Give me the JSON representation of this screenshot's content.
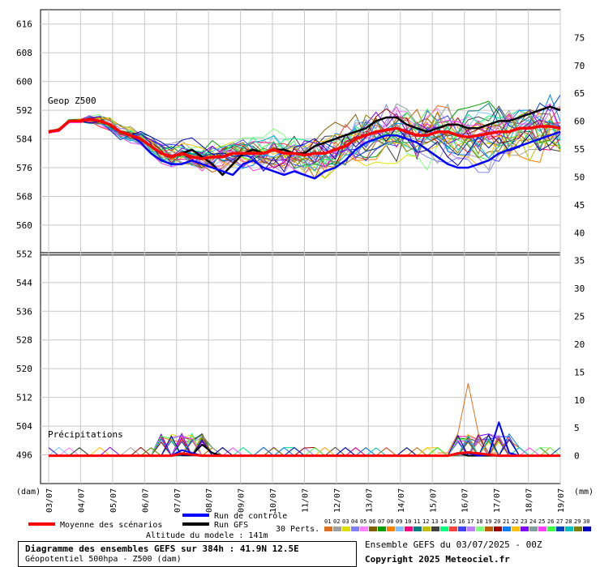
{
  "chart_data": {
    "type": "line",
    "title": "Diagramme des ensembles GEFS sur 384h : 41.9N 12.5E",
    "subtitle": "Géopotentiel 500hpa - Z500 (dam)",
    "ylabel_left": "(dam)",
    "ylabel_right": "(mm)",
    "ylim_left": [
      488,
      620
    ],
    "yticks_left": [
      616,
      608,
      600,
      592,
      584,
      576,
      568,
      560,
      552,
      544,
      536,
      528,
      520,
      512,
      504,
      496
    ],
    "ylim_right": [
      -5,
      80
    ],
    "yticks_right": [
      75,
      70,
      65,
      60,
      55,
      50,
      45,
      40,
      35,
      30,
      25,
      20,
      15,
      10,
      5,
      0
    ],
    "x_ticks": [
      "03/07",
      "04/07",
      "05/07",
      "06/07",
      "07/07",
      "08/07",
      "09/07",
      "10/07",
      "11/07",
      "12/07",
      "13/07",
      "14/07",
      "15/07",
      "16/07",
      "17/07",
      "18/07",
      "19/07"
    ],
    "grid": true,
    "label_geop": "Geop Z500",
    "label_precip": "Précipitations",
    "separator_line_value": 552,
    "series": [
      {
        "name": "Moyenne des scénarios",
        "color": "#ff0000",
        "values": [
          586,
          586.5,
          589,
          589,
          589.5,
          589,
          588,
          586,
          585,
          584,
          582,
          580,
          579,
          580,
          579,
          578.5,
          579,
          579,
          580,
          580,
          580,
          580,
          581,
          580,
          580,
          579.5,
          580,
          580,
          581,
          582,
          584,
          585,
          586,
          586.5,
          587,
          586,
          585,
          585,
          586,
          586,
          585,
          584.5,
          585,
          585.5,
          586,
          586,
          587,
          587,
          587.5,
          587.5,
          587
        ]
      },
      {
        "name": "Run de contrôle",
        "color": "#0000ff",
        "values": [
          586,
          586.5,
          589,
          589,
          589.5,
          589,
          588,
          586,
          585,
          583,
          580,
          578,
          577,
          577,
          578,
          577,
          576,
          575,
          574,
          577,
          578,
          576,
          575,
          574,
          575,
          574,
          573,
          575,
          576,
          578,
          581,
          583,
          584,
          585,
          585,
          584,
          583,
          581,
          579,
          577,
          576,
          576,
          577,
          578,
          580,
          581,
          582,
          583,
          584,
          585,
          586
        ]
      },
      {
        "name": "Run GFS",
        "color": "#000000",
        "values": [
          586,
          586.5,
          589,
          589,
          589.5,
          589,
          588,
          586,
          585,
          584,
          582,
          580,
          579,
          580,
          581,
          579,
          577,
          574,
          577,
          580,
          581,
          580,
          581,
          581,
          580,
          580,
          582,
          583,
          584,
          585,
          586,
          587,
          589,
          590,
          590,
          588,
          587,
          586,
          587,
          588,
          588,
          587,
          587,
          588,
          589,
          589,
          590,
          591,
          592,
          593,
          592
        ]
      }
    ],
    "precip": {
      "mean": [
        0,
        0,
        0,
        0,
        0,
        0,
        0,
        0,
        0,
        0,
        0,
        0,
        0,
        0.4,
        0.2,
        0,
        0,
        0,
        0,
        0,
        0,
        0,
        0,
        0,
        0,
        0,
        0,
        0,
        0,
        0,
        0,
        0,
        0,
        0,
        0,
        0,
        0,
        0,
        0,
        0,
        0.4,
        0.6,
        0.4,
        0.2,
        0,
        0,
        0,
        0,
        0,
        0,
        0
      ],
      "control": [
        0,
        0,
        0,
        0,
        0,
        0,
        0,
        0,
        0,
        0,
        0,
        0,
        0,
        1,
        0.5,
        0,
        0,
        0,
        0,
        0,
        0,
        0,
        0,
        0,
        0,
        0,
        0,
        0,
        0,
        0,
        0,
        0,
        0,
        0,
        0,
        0,
        0,
        0,
        0,
        0,
        0.3,
        0.5,
        0,
        0.2,
        6,
        0.5,
        0,
        0,
        0,
        0,
        0
      ],
      "gfs": [
        0,
        0,
        0,
        0,
        0,
        0,
        0,
        0,
        0,
        0,
        0,
        0,
        0,
        0.2,
        0.1,
        2,
        0.5,
        0,
        0,
        0,
        0,
        0,
        0,
        0,
        0,
        0,
        0,
        0,
        0,
        0,
        0,
        0,
        0,
        0,
        0,
        0,
        0,
        0,
        0,
        0,
        0.5,
        0,
        0,
        0,
        0,
        0,
        0,
        0,
        0,
        0,
        0
      ],
      "peak_member_max": 13
    }
  },
  "legend": {
    "mean_label": "Moyenne des scénarios",
    "control_label": "Run de contrôle",
    "gfs_label": "Run GFS",
    "perts_label": "30 Perts.",
    "altitude_label": "Altitude du modele : 141m",
    "member_numbers": [
      "01",
      "02",
      "03",
      "04",
      "05",
      "06",
      "07",
      "08",
      "09",
      "10",
      "11",
      "12",
      "13",
      "14",
      "15",
      "16",
      "17",
      "18",
      "19",
      "20",
      "21",
      "22",
      "23",
      "24",
      "25",
      "26",
      "27",
      "28",
      "29",
      "30"
    ],
    "member_colors": [
      "#e07020",
      "#a0a0a0",
      "#e0e000",
      "#8080ff",
      "#ff80ff",
      "#806000",
      "#00a000",
      "#ff8000",
      "#80c0ff",
      "#ff0080",
      "#008080",
      "#c0c000",
      "#404040",
      "#00ff80",
      "#ff4040",
      "#4040ff",
      "#c080ff",
      "#80ff80",
      "#c06000",
      "#a00000",
      "#0080ff",
      "#ffc000",
      "#8000ff",
      "#80a0a0",
      "#ff40ff",
      "#40ff40",
      "#0040c0",
      "#00c0c0",
      "#808000",
      "#0000c0"
    ]
  },
  "footer": {
    "title": "Diagramme des ensembles GEFS sur 384h : 41.9N 12.5E",
    "subtitle": "Géopotentiel 500hpa - Z500 (dam)",
    "run_info": "Ensemble GEFS du 03/07/2025 - 00Z",
    "copyright": "Copyright 2025 Meteociel.fr"
  }
}
